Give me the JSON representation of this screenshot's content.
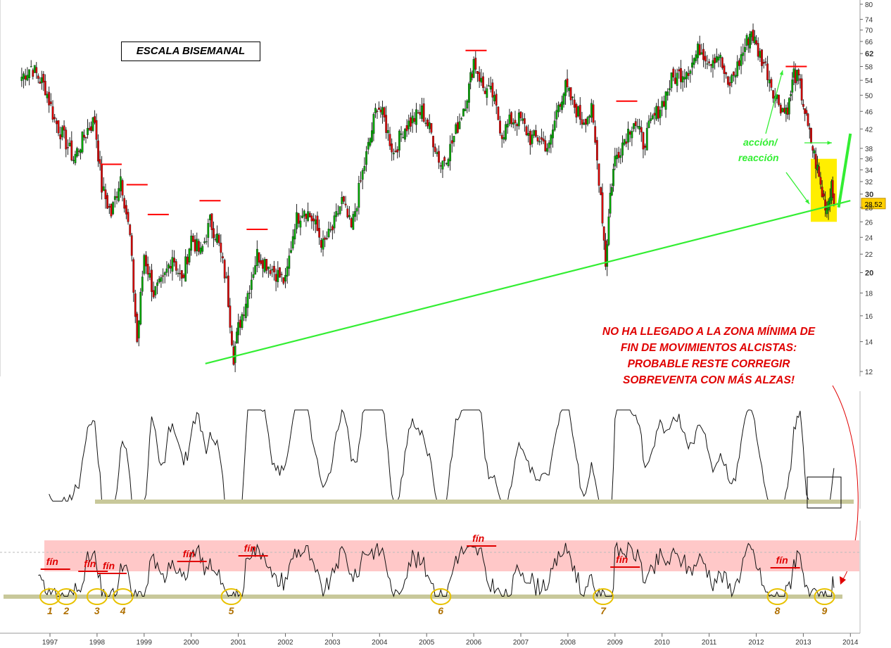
{
  "title_box": "ESCALA BISEMANAL",
  "note_lines": [
    "NO HA LLEGADO A LA ZONA MÍNIMA DE",
    "FIN DE MOVIMIENTOS ALCISTAS:",
    "PROBABLE RESTE CORREGIR",
    "SOBREVENTA CON MÁS ALZAS!"
  ],
  "accion_label": "acción/",
  "reaccion_label": "reacción",
  "price_tag": "28,52",
  "fin_label": "fín",
  "circle_labels": [
    "1",
    "2",
    "3",
    "4",
    "5",
    "6",
    "7",
    "8",
    "9"
  ],
  "colors": {
    "trendline": "#33ee33",
    "annotation_red": "#e00000",
    "resistance_red": "#ff0000",
    "highlight_yellow": "#ffee00",
    "circle_yellow": "#e8c200",
    "circle_label": "#b07000",
    "support_band": "#c8c89a",
    "pink_zone": "#ffc8c8",
    "up_candle": "#00aa00",
    "down_candle": "#dd0000"
  },
  "chart_data": {
    "type": "candlestick",
    "scale": "log",
    "x_ticks": [
      "1997",
      "1998",
      "1999",
      "2000",
      "2001",
      "2002",
      "2003",
      "2004",
      "2005",
      "2006",
      "2007",
      "2008",
      "2009",
      "2010",
      "2011",
      "2012",
      "2013",
      "2014"
    ],
    "y_ticks": [
      12,
      14,
      16,
      18,
      20,
      22,
      24,
      26,
      28,
      30,
      32,
      34,
      36,
      38,
      42,
      46,
      50,
      54,
      58,
      62,
      66,
      70,
      74,
      80
    ],
    "y_bold_ticks": [
      20,
      30,
      62
    ],
    "ylim": [
      11.5,
      80
    ],
    "last_price": 28.52,
    "price_path": [
      [
        1996.4,
        55
      ],
      [
        1996.6,
        58
      ],
      [
        1996.9,
        52
      ],
      [
        1997.1,
        44
      ],
      [
        1997.3,
        40
      ],
      [
        1997.5,
        36
      ],
      [
        1997.8,
        42
      ],
      [
        1997.95,
        44
      ],
      [
        1998.1,
        31
      ],
      [
        1998.3,
        27
      ],
      [
        1998.5,
        33
      ],
      [
        1998.7,
        24
      ],
      [
        1998.85,
        14
      ],
      [
        1999.0,
        22
      ],
      [
        1999.2,
        18
      ],
      [
        1999.4,
        19
      ],
      [
        1999.6,
        22
      ],
      [
        1999.8,
        19
      ],
      [
        2000.0,
        24
      ],
      [
        2000.2,
        22
      ],
      [
        2000.4,
        26
      ],
      [
        2000.55,
        24
      ],
      [
        2000.75,
        19
      ],
      [
        2000.9,
        13
      ],
      [
        2001.0,
        15
      ],
      [
        2001.2,
        18
      ],
      [
        2001.4,
        22
      ],
      [
        2001.6,
        21
      ],
      [
        2001.8,
        20
      ],
      [
        2002.0,
        19
      ],
      [
        2002.2,
        26
      ],
      [
        2002.4,
        28
      ],
      [
        2002.6,
        26
      ],
      [
        2002.8,
        23
      ],
      [
        2003.0,
        25
      ],
      [
        2003.2,
        29
      ],
      [
        2003.4,
        25
      ],
      [
        2003.6,
        32
      ],
      [
        2003.8,
        40
      ],
      [
        2003.95,
        48
      ],
      [
        2004.1,
        44
      ],
      [
        2004.3,
        37
      ],
      [
        2004.5,
        42
      ],
      [
        2004.7,
        44
      ],
      [
        2004.9,
        46
      ],
      [
        2005.1,
        41
      ],
      [
        2005.3,
        35
      ],
      [
        2005.5,
        38
      ],
      [
        2005.7,
        44
      ],
      [
        2005.9,
        52
      ],
      [
        2006.0,
        60
      ],
      [
        2006.2,
        52
      ],
      [
        2006.4,
        50
      ],
      [
        2006.6,
        41
      ],
      [
        2006.8,
        44
      ],
      [
        2007.0,
        44
      ],
      [
        2007.2,
        40
      ],
      [
        2007.4,
        40
      ],
      [
        2007.6,
        38
      ],
      [
        2007.8,
        48
      ],
      [
        2007.95,
        52
      ],
      [
        2008.1,
        48
      ],
      [
        2008.3,
        44
      ],
      [
        2008.5,
        46
      ],
      [
        2008.7,
        30
      ],
      [
        2008.8,
        21
      ],
      [
        2008.9,
        30
      ],
      [
        2009.0,
        36
      ],
      [
        2009.2,
        40
      ],
      [
        2009.4,
        44
      ],
      [
        2009.6,
        39
      ],
      [
        2009.8,
        44
      ],
      [
        2010.0,
        48
      ],
      [
        2010.2,
        54
      ],
      [
        2010.4,
        56
      ],
      [
        2010.6,
        58
      ],
      [
        2010.8,
        64
      ],
      [
        2011.0,
        60
      ],
      [
        2011.2,
        62
      ],
      [
        2011.4,
        52
      ],
      [
        2011.6,
        58
      ],
      [
        2011.8,
        66
      ],
      [
        2011.9,
        70
      ],
      [
        2012.0,
        64
      ],
      [
        2012.2,
        58
      ],
      [
        2012.4,
        50
      ],
      [
        2012.6,
        46
      ],
      [
        2012.7,
        48
      ],
      [
        2012.8,
        56
      ],
      [
        2012.9,
        54
      ],
      [
        2013.0,
        48
      ],
      [
        2013.1,
        42
      ],
      [
        2013.2,
        38
      ],
      [
        2013.3,
        34
      ],
      [
        2013.4,
        30
      ],
      [
        2013.5,
        28
      ],
      [
        2013.6,
        32
      ],
      [
        2013.65,
        28.52
      ]
    ],
    "trendline": [
      [
        2000.3,
        12.5
      ],
      [
        2014.0,
        29
      ]
    ],
    "resistance_marks": [
      1998.3,
      1998.85,
      1999.3,
      2000.4,
      2001.4,
      2006.05,
      2009.25,
      2012.85
    ],
    "resistance_levels": [
      35,
      31.5,
      27,
      29,
      25,
      63,
      48.5,
      58
    ],
    "oscillator_support_2014": true,
    "fin_marks": [
      1997.1,
      1997.9,
      1998.3,
      2000.0,
      2001.3,
      2006.15,
      2009.2,
      2012.6
    ],
    "cycle_lows": [
      1997.0,
      1997.35,
      1998.0,
      1998.55,
      2000.85,
      2005.3,
      2008.75,
      2012.45,
      2013.45
    ]
  }
}
